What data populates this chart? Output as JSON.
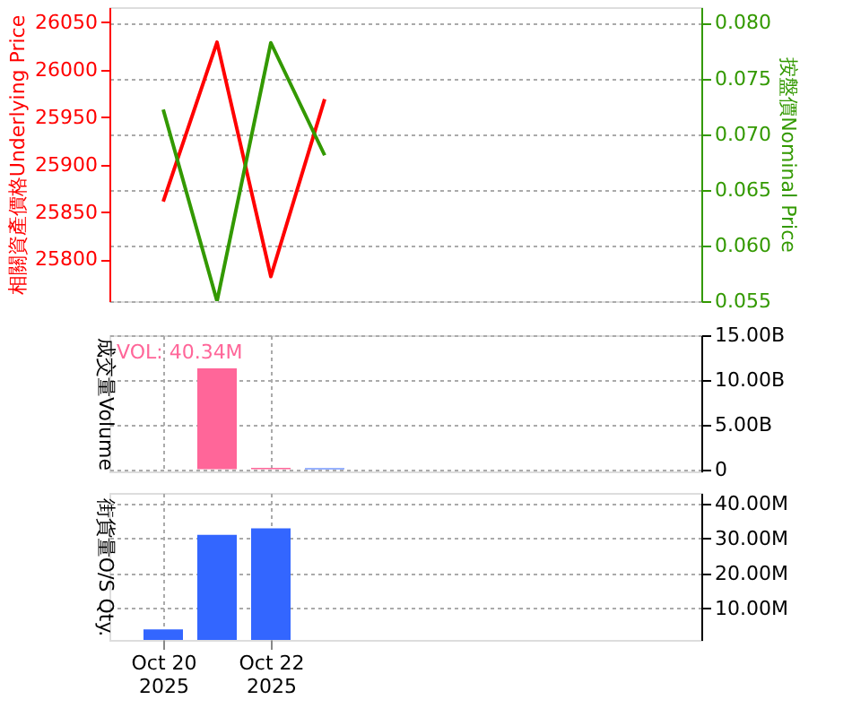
{
  "chart_data": [
    {
      "type": "line",
      "ylabel": "相關資產價格Underlying Price",
      "y2label": "按盤價Nominal Price",
      "x": [
        "2025-10-20",
        "2025-10-21",
        "2025-10-22",
        "2025-10-23"
      ],
      "xlim": [
        "2025-10-19",
        "2025-10-30"
      ],
      "xticks": [
        "2025-10-20",
        "2025-10-22"
      ],
      "ylim": [
        25756,
        26066
      ],
      "yticks": [
        25800,
        25850,
        25900,
        25950,
        26000,
        26050
      ],
      "y2lim": [
        0.055,
        0.0814
      ],
      "y2ticks": [
        0.055,
        {
          "value": 0.06,
          "label": "0.060"
        },
        0.065,
        {
          "value": 0.07,
          "label": "0.070"
        },
        0.075,
        {
          "value": 0.08,
          "label": "0.080"
        }
      ],
      "grid": true,
      "legend": false,
      "tick_labels": "y",
      "marker": "none",
      "line_style": "solid",
      "series": [
        {
          "color": "#ff0000",
          "values": [
            25861,
            26029,
            25782,
            25969
          ]
        },
        {
          "color": "#339900",
          "axis": "y2",
          "values": [
            0.0722,
            0.055,
            0.0782,
            0.0681
          ]
        }
      ]
    },
    {
      "type": "bar",
      "ylabel": "成交量Volume",
      "x": [
        "2025-10-21",
        "2025-10-22",
        "2025-10-23"
      ],
      "xlim": [
        "2025-10-19",
        "2025-10-30"
      ],
      "xticks": [
        "2025-10-20",
        "2025-10-22"
      ],
      "y2lim": [
        -250000000,
        15000000000
      ],
      "y2ticks": [
        0,
        {
          "value": 5000000000,
          "label": "5.00B"
        },
        {
          "value": 10000000000,
          "label": "10.00B"
        },
        {
          "value": 15000000000,
          "label": "15.00B"
        }
      ],
      "grid": true,
      "legend": false,
      "tick_labels": "y",
      "annotations": [
        "VOL: 40.34M"
      ],
      "series": [
        {
          "axis": "y2",
          "colors": [
            "#ff6699",
            "#ff6699",
            "#3366ff"
          ],
          "values": [
            11300000000,
            150000000,
            100000000
          ]
        }
      ]
    },
    {
      "type": "bar",
      "ylabel": "街貨量O/S Qty.",
      "x": [
        "2025-10-20",
        "2025-10-21",
        "2025-10-22"
      ],
      "xlim": [
        "2025-10-19",
        "2025-10-30"
      ],
      "xticks": [
        {
          "value": "2025-10-20",
          "label": "Oct 20\n2025"
        },
        {
          "value": "2025-10-22",
          "label": "Oct 22\n2025"
        }
      ],
      "y2lim": [
        1000000,
        43000000
      ],
      "y2ticks": [
        {
          "value": 10000000,
          "label": "10.00M"
        },
        {
          "value": 20000000,
          "label": "20.00M"
        },
        {
          "value": 30000000,
          "label": "30.00M"
        },
        {
          "value": 40000000,
          "label": "40.00M"
        }
      ],
      "grid": true,
      "legend": false,
      "series": [
        {
          "axis": "y2",
          "color": "#3366ff",
          "values": [
            4000000,
            31000000,
            32900000
          ]
        }
      ]
    }
  ]
}
